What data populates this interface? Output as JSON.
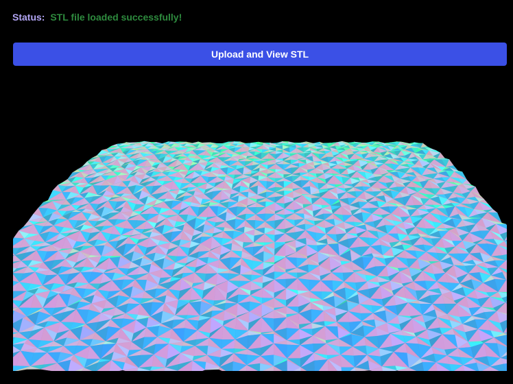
{
  "status": {
    "label": "Status:",
    "message": "STL file loaded successfully!"
  },
  "toolbar": {
    "upload_label": "Upload and View STL"
  },
  "viewer": {
    "model": "stl-terrain-mesh",
    "background": "#000000"
  },
  "colors": {
    "status_label": "#b3a6f5",
    "status_success": "#2e8b3e",
    "button": "#3b50e6"
  }
}
